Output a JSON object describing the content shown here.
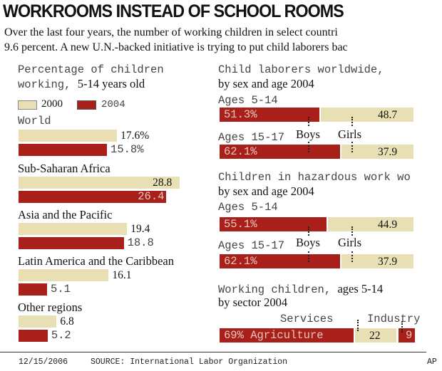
{
  "headline": "WORKROOMS INSTEAD OF SCHOOL ROOMS",
  "intro": [
    "Over the last four years, the number of working children in select countri",
    "9.6 percent. A new U.N.-backed initiative is trying to put child laborers bac"
  ],
  "colors": {
    "y2000": "#e8e0b4",
    "y2004": "#a91f1a"
  },
  "chart_data": [
    {
      "type": "bar",
      "orientation": "horizontal",
      "title_line1": "Percentage of children",
      "title_line2a": "working, ",
      "title_line2b": "5-14 years old",
      "legend": [
        "2000",
        "2004"
      ],
      "categories": [
        "World",
        "Sub-Saharan Africa",
        "Asia and the Pacific",
        "Latin America and the Caribbean",
        "Other regions"
      ],
      "series": [
        {
          "name": "2000",
          "values": [
            17.6,
            28.8,
            19.4,
            16.1,
            6.8
          ],
          "labels": [
            "17.6%",
            "28.8",
            "19.4",
            "16.1",
            "6.8"
          ]
        },
        {
          "name": "2004",
          "values": [
            15.8,
            26.4,
            18.8,
            5.1,
            5.2
          ],
          "labels": [
            "15.8%",
            "26.4",
            "18.8",
            "5.1",
            "5.2"
          ]
        }
      ]
    },
    {
      "type": "bar",
      "stacked": true,
      "title_line1": "Child laborers worldwide,",
      "title_line2": "by sex and age 2004",
      "categories": [
        "Ages 5-14",
        "Ages 15-17"
      ],
      "series": [
        {
          "name": "Boys",
          "values": [
            51.3,
            62.1
          ],
          "labels": [
            "51.3%",
            "62.1%"
          ]
        },
        {
          "name": "Girls",
          "values": [
            48.7,
            37.9
          ],
          "labels": [
            "48.7",
            "37.9"
          ]
        }
      ]
    },
    {
      "type": "bar",
      "stacked": true,
      "title_line1": "Children in hazardous work wo",
      "title_line2": "by sex and age 2004",
      "categories": [
        "Ages 5-14",
        "Ages 15-17"
      ],
      "series": [
        {
          "name": "Boys",
          "values": [
            55.1,
            62.1
          ],
          "labels": [
            "55.1%",
            "62.1%"
          ]
        },
        {
          "name": "Girls",
          "values": [
            44.9,
            37.9
          ],
          "labels": [
            "44.9",
            "37.9"
          ]
        }
      ]
    },
    {
      "type": "bar",
      "stacked": true,
      "title_line1a": "Working children, ",
      "title_line1b": "ages 5-14",
      "title_line2": "by sector 2004",
      "segments": [
        {
          "name": "Agriculture",
          "value": 69,
          "label": "69% Agriculture"
        },
        {
          "name": "Services",
          "value": 22,
          "label": "22"
        },
        {
          "name": "Industry",
          "value": 9,
          "label": "9"
        }
      ]
    }
  ],
  "footer": {
    "date": "12/15/2006",
    "source": "SOURCE: International Labor Organization",
    "credit": "AP"
  }
}
